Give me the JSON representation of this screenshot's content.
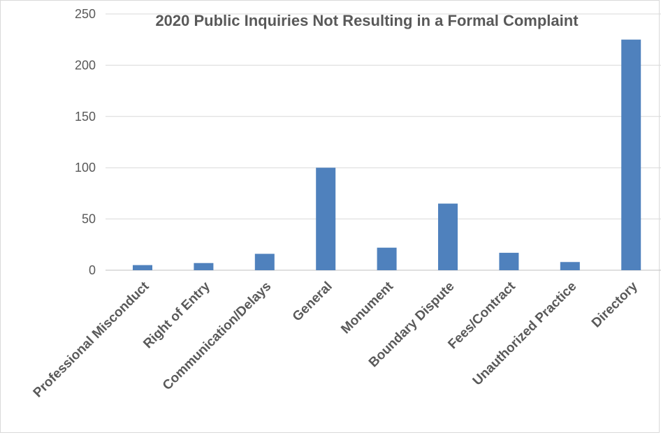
{
  "chart_data": {
    "type": "bar",
    "title": "2020 Public Inquiries Not Resulting in a Formal Complaint",
    "xlabel": "",
    "ylabel": "",
    "categories": [
      "Professional Misconduct",
      "Right of Entry",
      "Communication/Delays",
      "General",
      "Monument",
      "Boundary Dispute",
      "Fees/Contract",
      "Unauthorized Practice",
      "Directory"
    ],
    "values": [
      5,
      7,
      16,
      100,
      22,
      65,
      17,
      8,
      225
    ],
    "ylim": [
      0,
      250
    ],
    "yticks": [
      0,
      50,
      100,
      150,
      200,
      250
    ],
    "grid": true,
    "legend": "none",
    "bar_color": "#4f81bd"
  }
}
